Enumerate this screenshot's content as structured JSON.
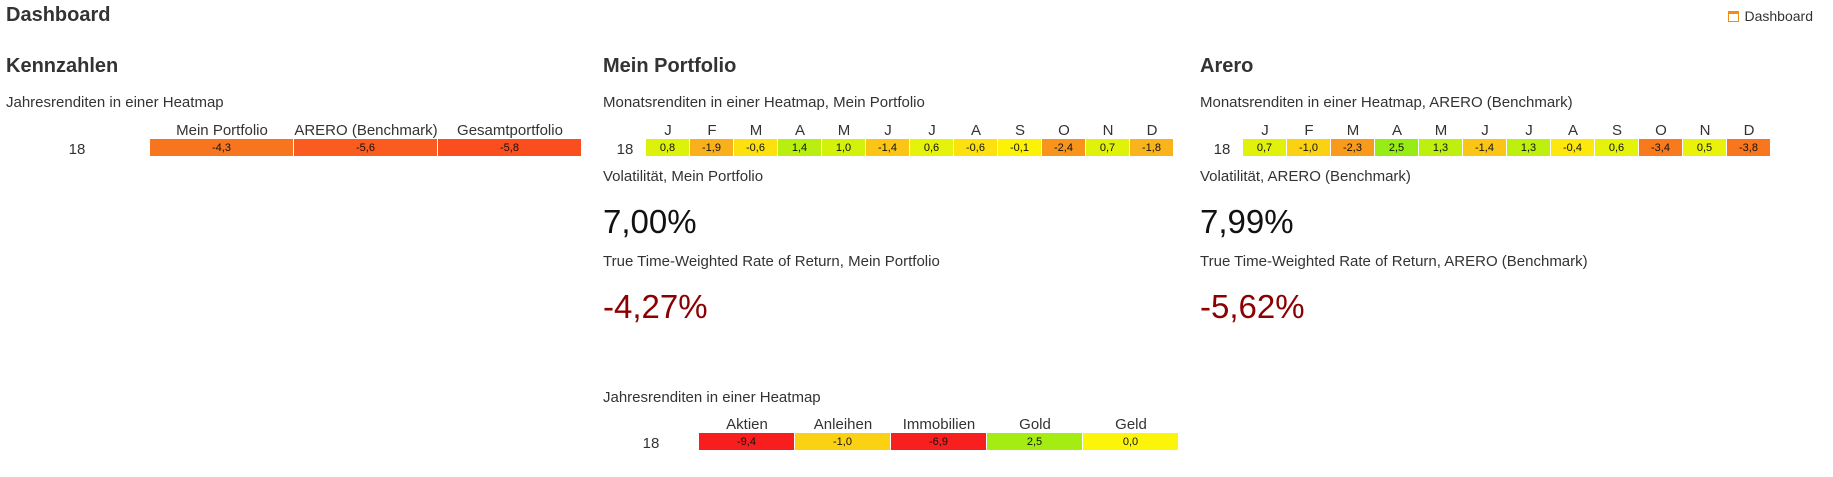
{
  "page": {
    "title": "Dashboard",
    "nav_link": "Dashboard",
    "nav_icon": "calendar-icon",
    "accent": "#f08c1a"
  },
  "kennzahlen": {
    "title": "Kennzahlen",
    "heatmap_label": "Jahresrenditen in einer Heatmap",
    "row_label": "18",
    "columns": [
      "Mein Portfolio",
      "ARERO (Benchmark)",
      "Gesamtportfolio"
    ],
    "values": [
      "-4,3",
      "-5,6",
      "-5,8"
    ],
    "colors": [
      "#f87520",
      "#f95c1e",
      "#fa4e1e"
    ]
  },
  "portfolio": {
    "title": "Mein Portfolio",
    "heatmap_label": "Monatsrenditen in einer Heatmap, Mein Portfolio",
    "row_label": "18",
    "months": [
      "J",
      "F",
      "M",
      "A",
      "M",
      "J",
      "J",
      "A",
      "S",
      "O",
      "N",
      "D"
    ],
    "values": [
      "0,8",
      "-1,9",
      "-0,6",
      "1,4",
      "1,0",
      "-1,4",
      "0,6",
      "-0,6",
      "-0,1",
      "-2,4",
      "0,7",
      "-1,8"
    ],
    "colors": [
      "#dcf20a",
      "#f8b01c",
      "#fde10f",
      "#b9ef10",
      "#d2f10b",
      "#fbc516",
      "#e4f309",
      "#fde10f",
      "#fbf206",
      "#f8931c",
      "#e0f209",
      "#f9b41b"
    ],
    "volatility_label": "Volatilität, Mein Portfolio",
    "volatility_value": "7,00%",
    "ttwror_label": "True Time-Weighted Rate of Return, Mein Portfolio",
    "ttwror_value": "-4,27%"
  },
  "arero": {
    "title": "Arero",
    "heatmap_label": "Monatsrenditen in einer Heatmap, ARERO (Benchmark)",
    "row_label": "18",
    "months": [
      "J",
      "F",
      "M",
      "A",
      "M",
      "J",
      "J",
      "A",
      "S",
      "O",
      "N",
      "D"
    ],
    "values": [
      "0,7",
      "-1,0",
      "-2,3",
      "2,5",
      "1,3",
      "-1,4",
      "1,3",
      "-0,4",
      "0,6",
      "-3,4",
      "0,5",
      "-3,8"
    ],
    "colors": [
      "#e0f209",
      "#fbd114",
      "#f89b1d",
      "#96ec14",
      "#bdef0f",
      "#fbc516",
      "#bdef0f",
      "#fde70d",
      "#e4f309",
      "#f87a1d",
      "#e8f309",
      "#f8761d"
    ],
    "volatility_label": "Volatilität, ARERO (Benchmark)",
    "volatility_value": "7,99%",
    "ttwror_label": "True Time-Weighted Rate of Return, ARERO (Benchmark)",
    "ttwror_value": "-5,62%"
  },
  "asset_classes": {
    "heatmap_label": "Jahresrenditen in einer Heatmap",
    "row_label": "18",
    "columns": [
      "Aktien",
      "Anleihen",
      "Immobilien",
      "Gold",
      "Geld"
    ],
    "values": [
      "-9,4",
      "-1,0",
      "-6,9",
      "2,5",
      "0,0"
    ],
    "colors": [
      "#f81e1e",
      "#fbd114",
      "#f8201e",
      "#a4ed12",
      "#fcf50a"
    ]
  }
}
